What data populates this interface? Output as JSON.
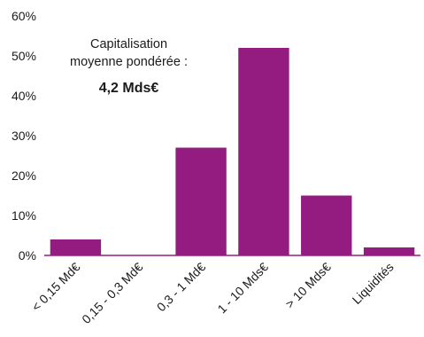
{
  "chart_data": {
    "type": "bar",
    "categories": [
      "< 0,15 Md€",
      "0,15 - 0,3 Md€",
      "0,3 - 1 Md€",
      "1 - 10 Mds€",
      "> 10 Mds€",
      "Liquidités"
    ],
    "values": [
      4,
      0,
      27,
      52,
      15,
      2
    ],
    "ylim": [
      0,
      60
    ],
    "yticks": [
      0,
      10,
      20,
      30,
      40,
      50,
      60
    ],
    "ytick_labels": [
      "0%",
      "10%",
      "20%",
      "30%",
      "40%",
      "50%",
      "60%"
    ],
    "grid": false,
    "bar_color": "#941b80",
    "annotation": {
      "line1": "Capitalisation",
      "line2": "moyenne pondérée :",
      "value": "4,2 Mds€"
    }
  }
}
